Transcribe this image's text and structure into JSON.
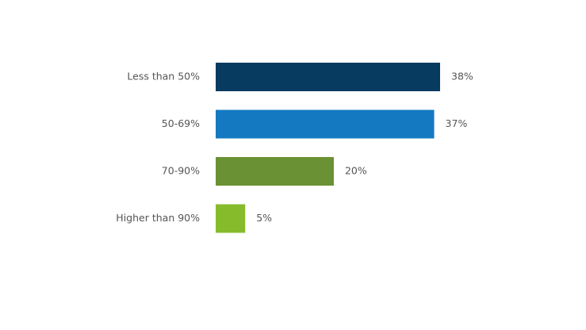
{
  "chart_data": {
    "type": "bar",
    "orientation": "horizontal",
    "categories": [
      "Less than 50%",
      "50-69%",
      "70-90%",
      "Higher than 90%"
    ],
    "values": [
      38,
      37,
      20,
      5
    ],
    "value_labels": [
      "38%",
      "37%",
      "20%",
      "5%"
    ],
    "colors": [
      "#083b60",
      "#1479c1",
      "#6a9133",
      "#86bc2b"
    ]
  }
}
